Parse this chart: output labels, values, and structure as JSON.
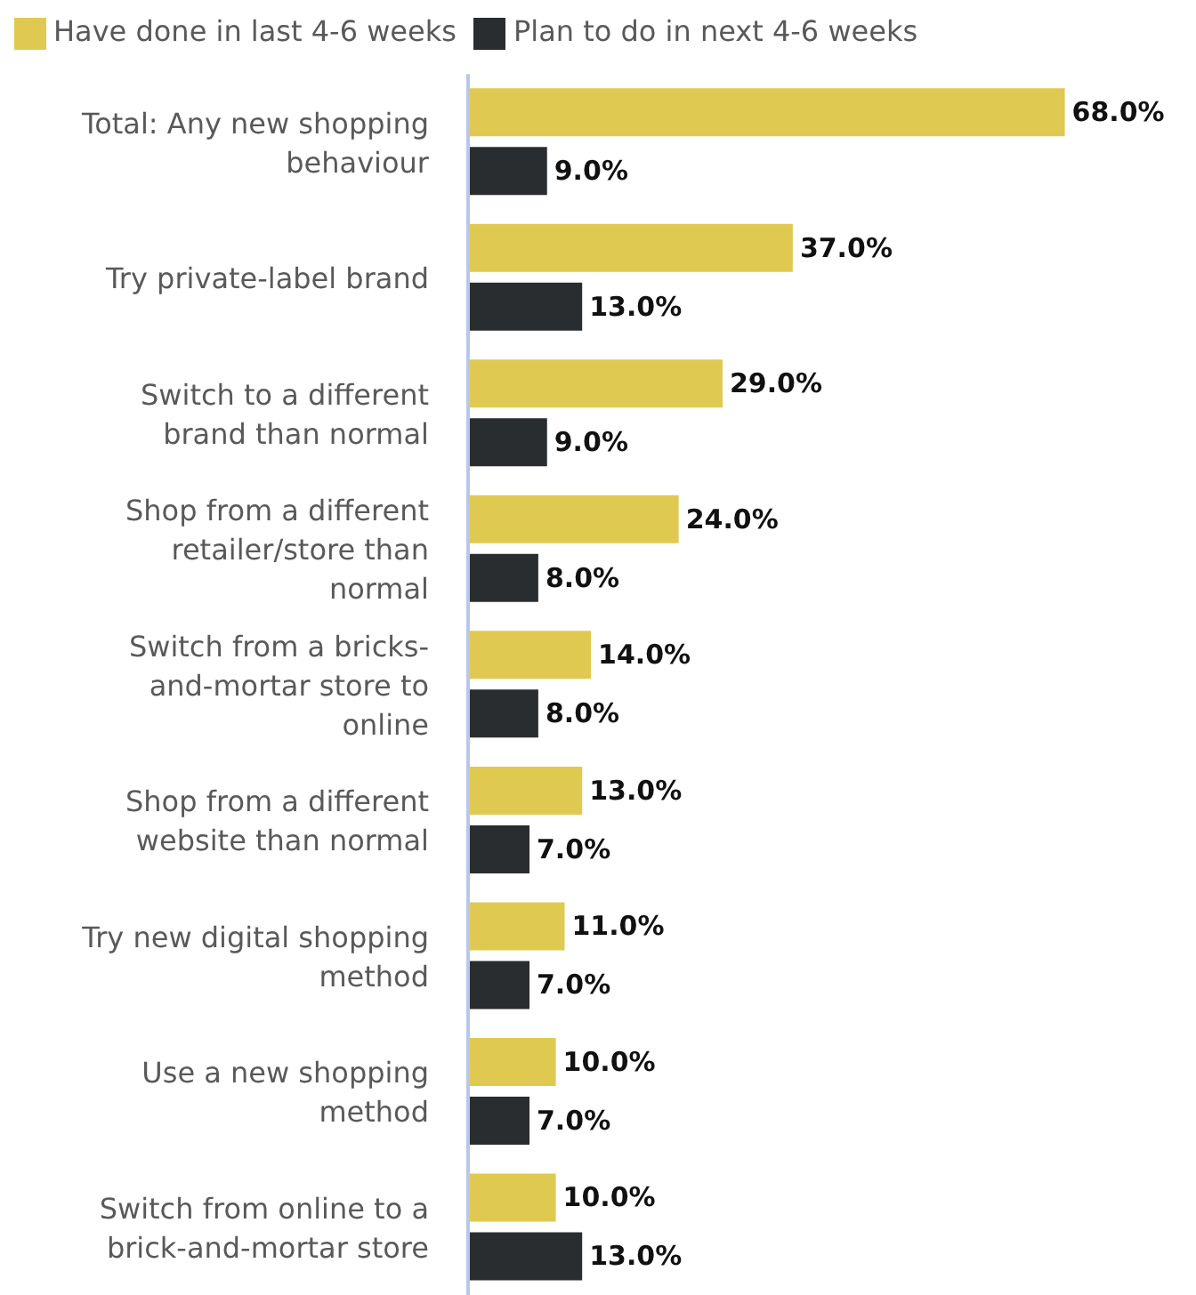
{
  "chart_data": {
    "type": "bar",
    "orientation": "horizontal",
    "legend": "top left",
    "grid": false,
    "categories": [
      "Total: Any new shopping behaviour",
      "Try private-label brand",
      "Switch to a different brand than normal",
      "Shop from a different retailer/store than normal",
      "Switch from a bricks-and-mortar store to online",
      "Shop from a different website than normal",
      "Try new digital shopping method",
      "Use a new shopping method",
      "Switch from online to a brick-and-mortar store"
    ],
    "series": [
      {
        "name": "Have done in last 4-6 weeks",
        "color": "#e0c951",
        "values": [
          68,
          37,
          29,
          24,
          14,
          13,
          11,
          10,
          10
        ],
        "value_labels": [
          "68.0%",
          "37.0%",
          "29.0%",
          "24.0%",
          "14.0%",
          "13.0%",
          "11.0%",
          "10.0%",
          "10.0%"
        ]
      },
      {
        "name": "Plan to do in next 4-6 weeks",
        "color": "#2a2d30",
        "values": [
          9,
          13,
          9,
          8,
          8,
          7,
          7,
          7,
          13
        ],
        "value_labels": [
          "9.0%",
          "13.0%",
          "9.0%",
          "8.0%",
          "8.0%",
          "7.0%",
          "7.0%",
          "7.0%",
          "13.0%"
        ]
      }
    ]
  }
}
